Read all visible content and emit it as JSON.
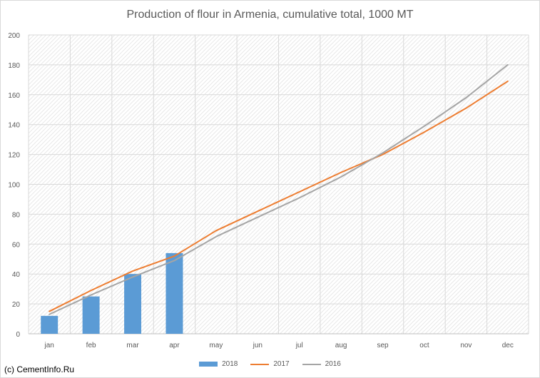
{
  "chart_data": {
    "type": "bar",
    "title": "Production of flour in Armenia, cumulative total, 1000 MT",
    "categories": [
      "jan",
      "feb",
      "mar",
      "apr",
      "may",
      "jun",
      "jul",
      "aug",
      "sep",
      "oct",
      "nov",
      "dec"
    ],
    "ylim": [
      0,
      200
    ],
    "yticks": [
      0,
      20,
      40,
      60,
      80,
      100,
      120,
      140,
      160,
      180,
      200
    ],
    "grid": true,
    "legend_position": "bottom",
    "series": [
      {
        "name": "2018",
        "kind": "bar",
        "color": "#5b9bd5",
        "values": [
          12,
          25,
          40,
          54,
          null,
          null,
          null,
          null,
          null,
          null,
          null,
          null
        ]
      },
      {
        "name": "2017",
        "kind": "line",
        "color": "#ed7d31",
        "values": [
          15,
          29,
          42,
          52,
          69,
          82,
          95,
          108,
          120,
          135,
          151,
          169
        ]
      },
      {
        "name": "2016",
        "kind": "line",
        "color": "#a5a5a5",
        "values": [
          13,
          26,
          38,
          49,
          65,
          78,
          91,
          105,
          121,
          139,
          158,
          180
        ]
      }
    ]
  },
  "footer": {
    "copyright": "(c) CementInfo.Ru"
  }
}
